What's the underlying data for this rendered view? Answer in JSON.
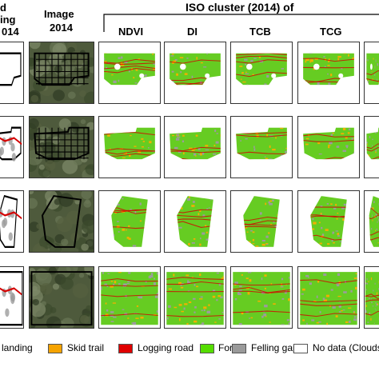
{
  "header": {
    "col0_line1": "d",
    "col0_line2": "ing",
    "col0_line3": "014",
    "image_line1": "Image",
    "image_line2": "2014",
    "iso_title": "ISO cluster (2014) of",
    "sub_labels": [
      "NDVI",
      "DI",
      "TCB",
      "TCG"
    ]
  },
  "legend": {
    "items": [
      {
        "label": "landing",
        "color": "#ffffff"
      },
      {
        "label": "Skid trail",
        "color": "#f5a300"
      },
      {
        "label": "Logging road",
        "color": "#e00000"
      },
      {
        "label": "Forest",
        "color": "#55dd00"
      },
      {
        "label": "Felling gap",
        "color": "#9a9a9a"
      },
      {
        "label": "No data (Clouds)",
        "color": "#ffffff"
      }
    ]
  },
  "colors": {
    "forest": "#66cc22",
    "trail": "#f0b000",
    "road": "#d40000",
    "gap": "#9c9c9c",
    "imagery": "#4e5a3c"
  }
}
